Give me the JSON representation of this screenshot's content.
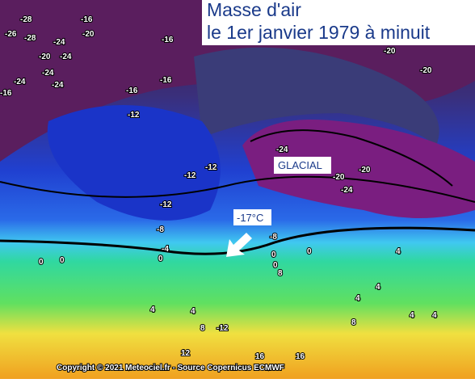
{
  "header": {
    "title_lines": [
      "Masse d'air",
      "le 1er janvier 1979 à minuit"
    ]
  },
  "annotations": {
    "glacial": "GLACIAL",
    "temperature": "-17°C"
  },
  "contour_labels": [
    -28,
    -16,
    -26,
    -28,
    -20,
    -24,
    -16,
    -20,
    -24,
    -24,
    -24,
    -16,
    -16,
    -24,
    -16,
    -12,
    -20,
    -20,
    -24,
    -20,
    -20,
    -24,
    -12,
    -12,
    -12,
    -8,
    -8,
    -4,
    0,
    0,
    0,
    0,
    0,
    0,
    8,
    4,
    4,
    4,
    8,
    -12,
    12,
    16,
    16,
    4,
    4,
    4,
    4,
    8
  ],
  "footer": {
    "copyright": "Copyright © 2021 Meteociel.fr - Source Copernicus ECMWF"
  }
}
